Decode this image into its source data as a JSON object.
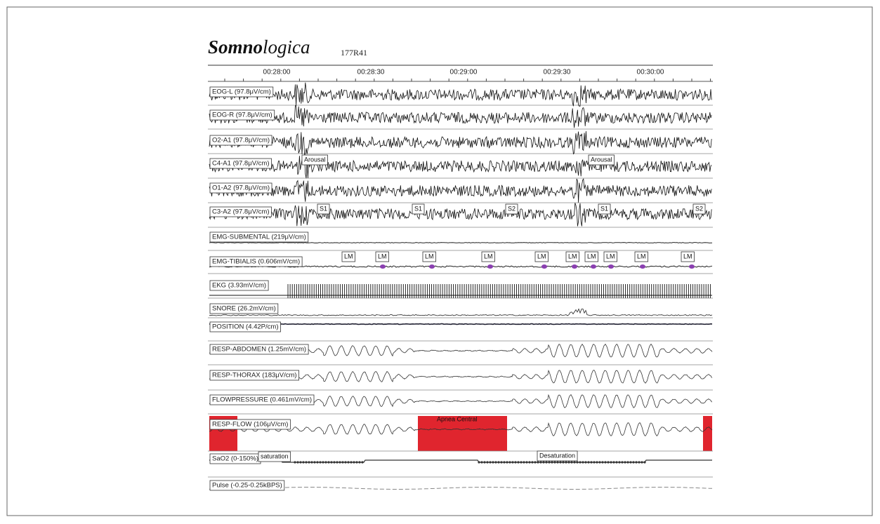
{
  "header": {
    "logo_bold": "Somno",
    "logo_italic": "logica",
    "record_id": "177R41"
  },
  "time_axis": [
    "00:28:00",
    "00:28:30",
    "00:29:00",
    "00:29:30",
    "00:30:00"
  ],
  "channels": [
    "EOG-L (97.8μV/cm)",
    "EOG-R (97.8μV/cm)",
    "O2-A1 (97.8μV/cm)",
    "C4-A1 (97.8μV/cm)",
    "O1-A2 (97.8μV/cm)",
    "C3-A2 (97.8μV/cm)",
    "EMG-SUBMENTAL (219μV/cm)",
    "EMG-TIBIALIS (0.606mV/cm)",
    "EKG (3.93mV/cm)",
    "SNORE (26.2mV/cm)",
    "POSITION (4.42P/cm)",
    "RESP-ABDOMEN (1.25mV/cm)",
    "RESP-THORAX (183μV/cm)",
    "FLOWPRESSURE (0.461mV/cm)",
    "RESP-FLOW (106μV/cm)",
    "SaO2 (0-150%)",
    "Pulse (-0.25-0.25kBPS)"
  ],
  "annotations": {
    "arousal": [
      "Arousal",
      "Arousal"
    ],
    "sleep_stages": [
      "S1",
      "S1",
      "S2",
      "S1",
      "S2"
    ],
    "leg_movements": [
      "LM",
      "LM",
      "LM",
      "LM",
      "LM",
      "LM",
      "LM",
      "LM",
      "LM",
      "LM"
    ],
    "apnea": "Apnea Central",
    "desaturation": [
      "saturation",
      "Desaturation"
    ]
  }
}
